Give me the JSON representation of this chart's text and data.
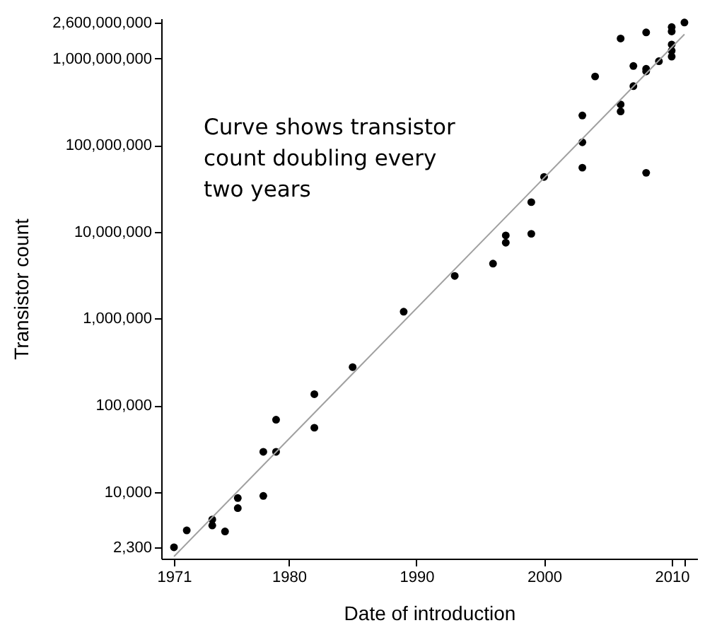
{
  "chart_data": {
    "type": "scatter",
    "xlabel": "Date of introduction",
    "ylabel": "Transistor count",
    "log": "y",
    "grid": false,
    "marker": "circle",
    "xlim": [
      1970,
      2012
    ],
    "xticks": [
      1971,
      1980,
      1990,
      2000,
      2010,
      {
        "value": 2011,
        "label": null
      }
    ],
    "ylim": [
      1700,
      2900000000
    ],
    "yticks": [
      {
        "value": 2300,
        "label": "2,300"
      },
      {
        "value": 10000,
        "label": "10,000"
      },
      {
        "value": 100000,
        "label": "100,000"
      },
      {
        "value": 1000000,
        "label": "1,000,000"
      },
      {
        "value": 10000000,
        "label": "10,000,000"
      },
      {
        "value": 100000000,
        "label": "100,000,000"
      },
      {
        "value": 1000000000,
        "label": "1,000,000,000"
      },
      {
        "value": 2600000000,
        "label": "2,600,000,000"
      }
    ],
    "annotations": [
      "Curve shows transistor count doubling every two years"
    ],
    "series": [
      {
        "color": "#000000",
        "x": [
          1971,
          1972,
          1974,
          1974,
          1975,
          1976,
          1976,
          1978,
          1978,
          1979,
          1979,
          1982,
          1982,
          1985,
          1989,
          1993,
          1996,
          1997,
          1997,
          1999,
          1999,
          2000,
          2003,
          2003,
          2003,
          2004,
          2006,
          2006,
          2006,
          2007,
          2007,
          2008,
          2008,
          2008,
          2008,
          2009,
          2010,
          2010,
          2010,
          2010,
          2010,
          2011
        ],
        "values": [
          2300,
          3600,
          4800,
          4100,
          3500,
          8500,
          6500,
          9000,
          29000,
          29000,
          68000,
          134000,
          55000,
          275000,
          1200000,
          3100000,
          4300000,
          9100000,
          7500000,
          22000000,
          9500000,
          43000000,
          55000000,
          108000000,
          220000000,
          620000000,
          245000000,
          295000000,
          1700000000,
          480000000,
          820000000,
          760000000,
          710000000,
          2000000000,
          48000000,
          930000000,
          2300000000,
          2050000000,
          1450000000,
          1230000000,
          1050000000,
          2600000000
        ]
      },
      {
        "type": "line",
        "marker": "none",
        "color": "#a0a0a0",
        "x": [
          1971,
          2011
        ],
        "values": [
          1800,
          1900000000
        ]
      }
    ]
  }
}
